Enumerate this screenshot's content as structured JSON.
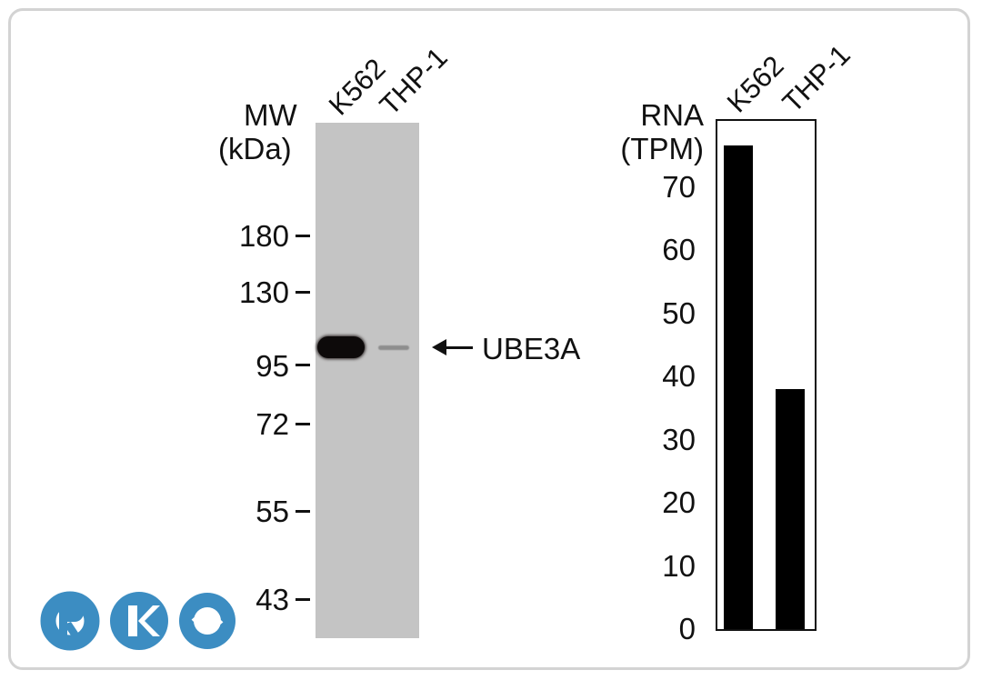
{
  "blot": {
    "mw_label_line1": "MW",
    "mw_label_line2": "(kDa)",
    "lanes": [
      "K562",
      "THP-1"
    ],
    "markers": [
      "180",
      "130",
      "95",
      "72",
      "55",
      "43"
    ],
    "target_label": "UBE3A",
    "colors": {
      "membrane": "#c4c4c4",
      "band": "#0d0a0a",
      "text": "#111111"
    }
  },
  "chart_data": {
    "type": "bar",
    "title": "",
    "ylabel_line1": "RNA",
    "ylabel_line2": "(TPM)",
    "categories": [
      "K562",
      "THP-1"
    ],
    "values": [
      76.5,
      38
    ],
    "ylim": [
      0,
      80
    ],
    "yticks": [
      "0",
      "10",
      "20",
      "30",
      "40",
      "50",
      "60",
      "70"
    ],
    "bar_color": "#000000",
    "grid": false
  },
  "logo": {
    "text": "RKO",
    "color": "#3c8dc2"
  }
}
